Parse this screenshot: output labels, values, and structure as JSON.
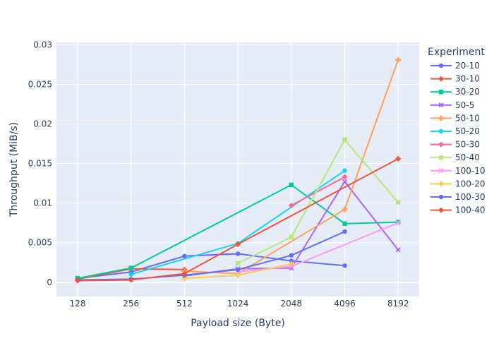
{
  "chart_data": {
    "type": "line",
    "xlabel": "Payload size (Byte)",
    "ylabel": "Throughput (MiB/s)",
    "x_categories": [
      "128",
      "256",
      "512",
      "1024",
      "2048",
      "4096",
      "8192"
    ],
    "y_ticks": [
      0,
      0.005,
      0.01,
      0.015,
      0.02,
      0.025,
      0.03
    ],
    "y_tick_labels": [
      "0",
      "0.005",
      "0.01",
      "0.015",
      "0.02",
      "0.025",
      "0.03"
    ],
    "ylim": [
      -0.0018,
      0.0303
    ],
    "grid": true,
    "plot_background": "#e5ecf6",
    "legend": {
      "title": "Experiment",
      "placement": "right"
    },
    "series": [
      {
        "name": "20-10",
        "color": "#636efa",
        "marker": "circle",
        "values": [
          0.0005,
          0.0013,
          0.0033,
          0.0036,
          0.0027,
          0.0021,
          null
        ]
      },
      {
        "name": "30-10",
        "color": "#ef553b",
        "marker": "diamond",
        "values": [
          0.0004,
          0.0017,
          0.0016,
          null,
          null,
          null,
          null
        ]
      },
      {
        "name": "30-20",
        "color": "#00cc96",
        "marker": "square",
        "values": [
          0.0005,
          0.0018,
          null,
          null,
          0.0123,
          0.0074,
          0.0076
        ]
      },
      {
        "name": "50-5",
        "color": "#ab63fa",
        "marker": "x",
        "values": [
          null,
          null,
          0.0008,
          0.0017,
          0.0018,
          0.0127,
          0.0041
        ]
      },
      {
        "name": "50-10",
        "color": "#ffa15a",
        "marker": "cross",
        "values": [
          null,
          null,
          0.0014,
          0.0011,
          null,
          0.0092,
          0.0281
        ]
      },
      {
        "name": "50-20",
        "color": "#19d3f3",
        "marker": "circle",
        "values": [
          null,
          0.001,
          null,
          0.0049,
          null,
          0.0141,
          null
        ]
      },
      {
        "name": "50-30",
        "color": "#ff6692",
        "marker": "diamond",
        "values": [
          null,
          null,
          null,
          null,
          0.0097,
          0.0133,
          null
        ]
      },
      {
        "name": "50-40",
        "color": "#b6e880",
        "marker": "square",
        "values": [
          null,
          null,
          null,
          0.0024,
          0.0057,
          0.018,
          0.0101
        ]
      },
      {
        "name": "100-10",
        "color": "#ff97ff",
        "marker": "x",
        "values": [
          null,
          null,
          null,
          0.0013,
          0.002,
          null,
          0.0075
        ]
      },
      {
        "name": "100-20",
        "color": "#fecb52",
        "marker": "cross",
        "values": [
          null,
          null,
          0.0005,
          0.0009,
          0.0023,
          null,
          null
        ]
      },
      {
        "name": "100-30",
        "color": "#636efa",
        "marker": "circle",
        "values": [
          0.0003,
          0.0004,
          0.0009,
          0.0016,
          0.0034,
          0.0064,
          null
        ]
      },
      {
        "name": "100-40",
        "color": "#ef553b",
        "marker": "diamond",
        "values": [
          0.0002,
          0.0003,
          0.0011,
          0.0048,
          null,
          null,
          0.0156
        ]
      }
    ]
  }
}
